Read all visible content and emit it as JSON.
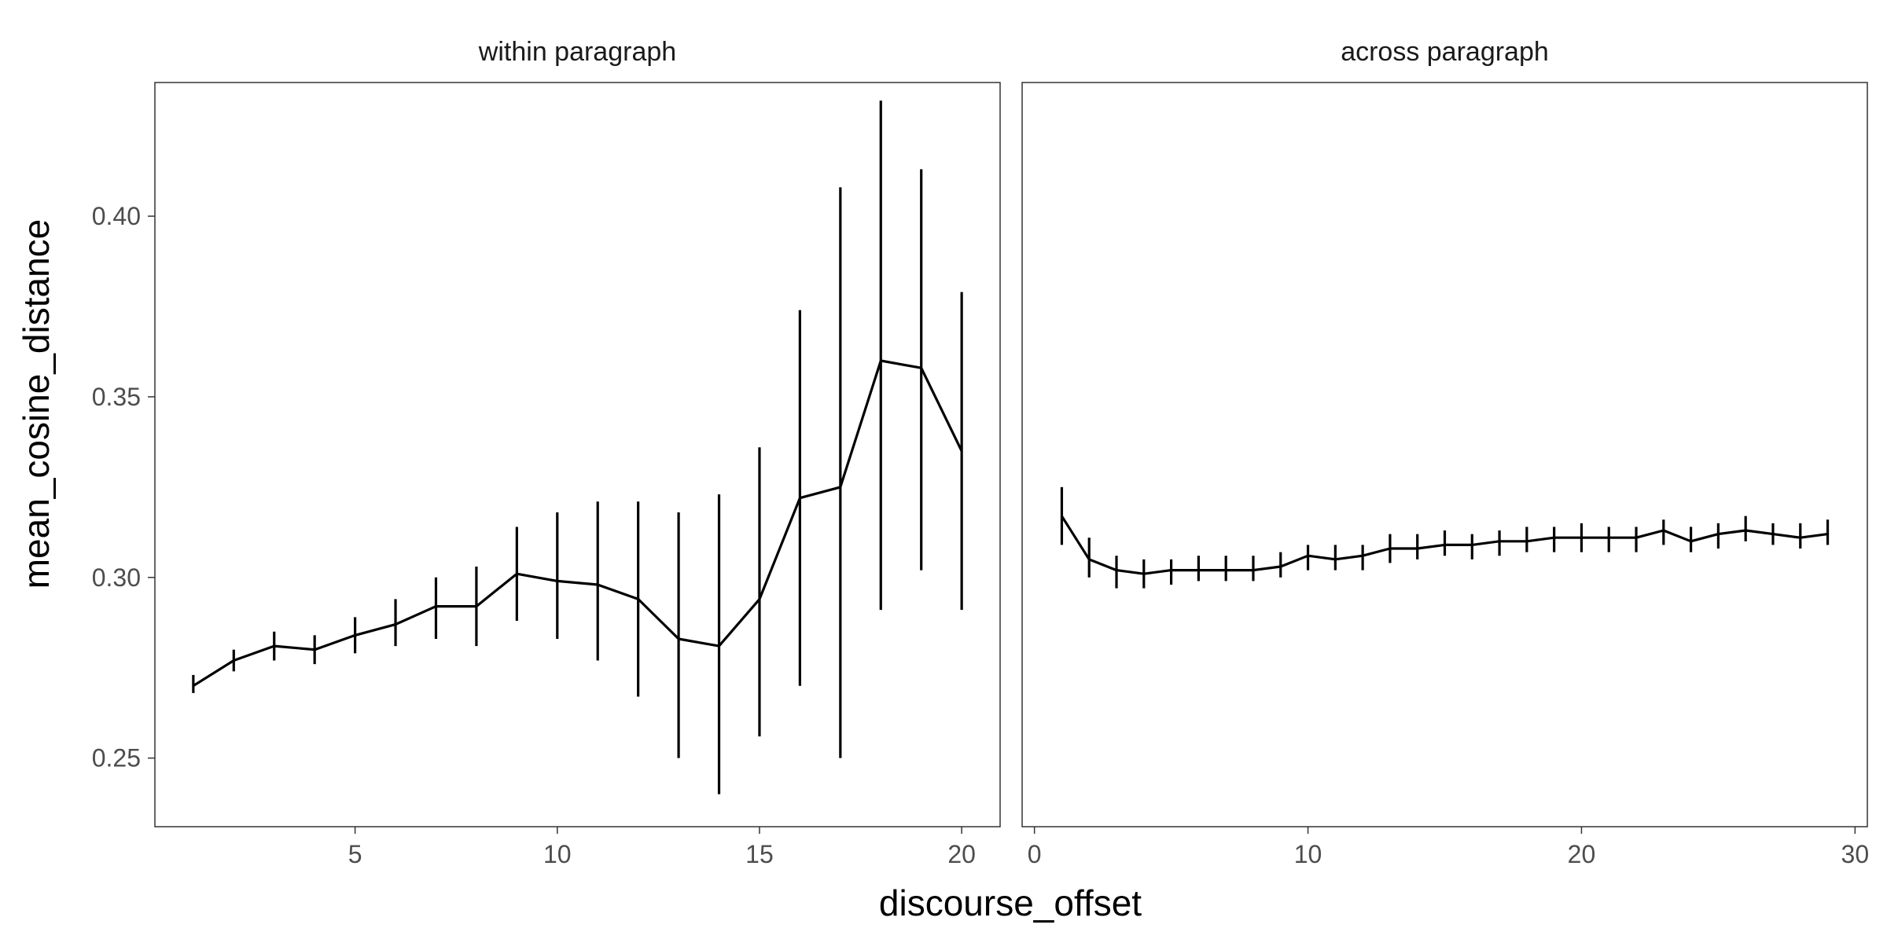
{
  "chart_data": {
    "type": "line",
    "xlabel": "discourse_offset",
    "ylabel": "mean_cosine_distance",
    "ylim": [
      0.231,
      0.437
    ],
    "y_ticks": [
      0.25,
      0.3,
      0.35,
      0.4
    ],
    "y_tick_labels": [
      "0.25",
      "0.30",
      "0.35",
      "0.40"
    ],
    "grid": false,
    "error_bars": true,
    "line_color": "#000000",
    "panels": [
      {
        "title": "within paragraph",
        "xlim": [
          0.05,
          20.95
        ],
        "x_ticks": [
          5,
          10,
          15,
          20
        ],
        "x_tick_labels": [
          "5",
          "10",
          "15",
          "20"
        ],
        "points": [
          {
            "x": 1,
            "y": 0.27,
            "lo": 0.268,
            "hi": 0.273
          },
          {
            "x": 2,
            "y": 0.277,
            "lo": 0.274,
            "hi": 0.28
          },
          {
            "x": 3,
            "y": 0.281,
            "lo": 0.277,
            "hi": 0.285
          },
          {
            "x": 4,
            "y": 0.28,
            "lo": 0.276,
            "hi": 0.284
          },
          {
            "x": 5,
            "y": 0.284,
            "lo": 0.279,
            "hi": 0.289
          },
          {
            "x": 6,
            "y": 0.287,
            "lo": 0.281,
            "hi": 0.294
          },
          {
            "x": 7,
            "y": 0.292,
            "lo": 0.283,
            "hi": 0.3
          },
          {
            "x": 8,
            "y": 0.292,
            "lo": 0.281,
            "hi": 0.303
          },
          {
            "x": 9,
            "y": 0.301,
            "lo": 0.288,
            "hi": 0.314
          },
          {
            "x": 10,
            "y": 0.299,
            "lo": 0.283,
            "hi": 0.318
          },
          {
            "x": 11,
            "y": 0.298,
            "lo": 0.277,
            "hi": 0.321
          },
          {
            "x": 12,
            "y": 0.294,
            "lo": 0.267,
            "hi": 0.321
          },
          {
            "x": 13,
            "y": 0.283,
            "lo": 0.25,
            "hi": 0.318
          },
          {
            "x": 14,
            "y": 0.281,
            "lo": 0.24,
            "hi": 0.323
          },
          {
            "x": 15,
            "y": 0.294,
            "lo": 0.256,
            "hi": 0.336
          },
          {
            "x": 16,
            "y": 0.322,
            "lo": 0.27,
            "hi": 0.374
          },
          {
            "x": 17,
            "y": 0.325,
            "lo": 0.25,
            "hi": 0.408
          },
          {
            "x": 18,
            "y": 0.36,
            "lo": 0.291,
            "hi": 0.432
          },
          {
            "x": 19,
            "y": 0.358,
            "lo": 0.302,
            "hi": 0.413
          },
          {
            "x": 20,
            "y": 0.335,
            "lo": 0.291,
            "hi": 0.379
          }
        ]
      },
      {
        "title": "across paragraph",
        "xlim": [
          -0.45,
          30.45
        ],
        "x_ticks": [
          0,
          10,
          20,
          30
        ],
        "x_tick_labels": [
          "0",
          "10",
          "20",
          "30"
        ],
        "points": [
          {
            "x": 1,
            "y": 0.317,
            "lo": 0.309,
            "hi": 0.325
          },
          {
            "x": 2,
            "y": 0.305,
            "lo": 0.3,
            "hi": 0.311
          },
          {
            "x": 3,
            "y": 0.302,
            "lo": 0.297,
            "hi": 0.306
          },
          {
            "x": 4,
            "y": 0.301,
            "lo": 0.297,
            "hi": 0.305
          },
          {
            "x": 5,
            "y": 0.302,
            "lo": 0.298,
            "hi": 0.305
          },
          {
            "x": 6,
            "y": 0.302,
            "lo": 0.299,
            "hi": 0.306
          },
          {
            "x": 7,
            "y": 0.302,
            "lo": 0.299,
            "hi": 0.306
          },
          {
            "x": 8,
            "y": 0.302,
            "lo": 0.299,
            "hi": 0.306
          },
          {
            "x": 9,
            "y": 0.303,
            "lo": 0.3,
            "hi": 0.307
          },
          {
            "x": 10,
            "y": 0.306,
            "lo": 0.302,
            "hi": 0.309
          },
          {
            "x": 11,
            "y": 0.305,
            "lo": 0.302,
            "hi": 0.309
          },
          {
            "x": 12,
            "y": 0.306,
            "lo": 0.302,
            "hi": 0.309
          },
          {
            "x": 13,
            "y": 0.308,
            "lo": 0.304,
            "hi": 0.312
          },
          {
            "x": 14,
            "y": 0.308,
            "lo": 0.305,
            "hi": 0.312
          },
          {
            "x": 15,
            "y": 0.309,
            "lo": 0.306,
            "hi": 0.313
          },
          {
            "x": 16,
            "y": 0.309,
            "lo": 0.305,
            "hi": 0.312
          },
          {
            "x": 17,
            "y": 0.31,
            "lo": 0.306,
            "hi": 0.313
          },
          {
            "x": 18,
            "y": 0.31,
            "lo": 0.307,
            "hi": 0.314
          },
          {
            "x": 19,
            "y": 0.311,
            "lo": 0.307,
            "hi": 0.314
          },
          {
            "x": 20,
            "y": 0.311,
            "lo": 0.307,
            "hi": 0.315
          },
          {
            "x": 21,
            "y": 0.311,
            "lo": 0.307,
            "hi": 0.314
          },
          {
            "x": 22,
            "y": 0.311,
            "lo": 0.307,
            "hi": 0.314
          },
          {
            "x": 23,
            "y": 0.313,
            "lo": 0.309,
            "hi": 0.316
          },
          {
            "x": 24,
            "y": 0.31,
            "lo": 0.307,
            "hi": 0.314
          },
          {
            "x": 25,
            "y": 0.312,
            "lo": 0.308,
            "hi": 0.315
          },
          {
            "x": 26,
            "y": 0.313,
            "lo": 0.31,
            "hi": 0.317
          },
          {
            "x": 27,
            "y": 0.312,
            "lo": 0.309,
            "hi": 0.315
          },
          {
            "x": 28,
            "y": 0.311,
            "lo": 0.308,
            "hi": 0.315
          },
          {
            "x": 29,
            "y": 0.312,
            "lo": 0.309,
            "hi": 0.316
          }
        ]
      }
    ]
  }
}
